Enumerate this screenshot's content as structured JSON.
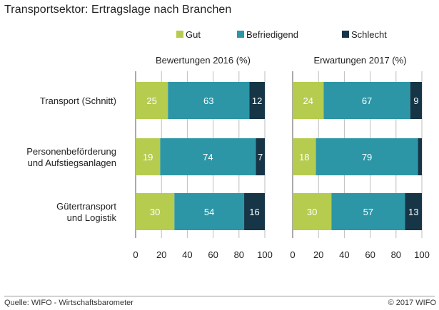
{
  "title": "Transportsektor: Ertragslage nach Branchen",
  "source": "Quelle: WIFO - Wirtschaftsbarometer",
  "copyright": "© 2017 WIFO",
  "chart_data": {
    "type": "bar",
    "orientation": "horizontal",
    "stacked": true,
    "categories": [
      "Transport (Schnitt)",
      "Personenbeförderung\nund Aufstiegsanlagen",
      "Gütertransport\nund Logistik"
    ],
    "legend_position": "top",
    "series_colors": [
      "#b5cc4f",
      "#2d96a6",
      "#163547"
    ],
    "panels": [
      {
        "title": "Bewertungen 2016 (%)",
        "xlim": [
          0,
          100
        ],
        "xticks": [
          0,
          20,
          40,
          60,
          80,
          100
        ],
        "series": [
          {
            "name": "Gut",
            "values": [
              25,
              19,
              30
            ]
          },
          {
            "name": "Befriedigend",
            "values": [
              63,
              74,
              54
            ]
          },
          {
            "name": "Schlecht",
            "values": [
              12,
              7,
              16
            ]
          }
        ]
      },
      {
        "title": "Erwartungen 2017 (%)",
        "xlim": [
          0,
          100
        ],
        "xticks": [
          0,
          20,
          40,
          60,
          80,
          100
        ],
        "series": [
          {
            "name": "Gut",
            "values": [
              24,
              18,
              30
            ]
          },
          {
            "name": "Befriedigend",
            "values": [
              67,
              79,
              57
            ]
          },
          {
            "name": "Schlecht",
            "values": [
              9,
              3,
              13
            ]
          }
        ],
        "hidden_labels": [
          [
            1,
            2
          ]
        ]
      }
    ]
  }
}
